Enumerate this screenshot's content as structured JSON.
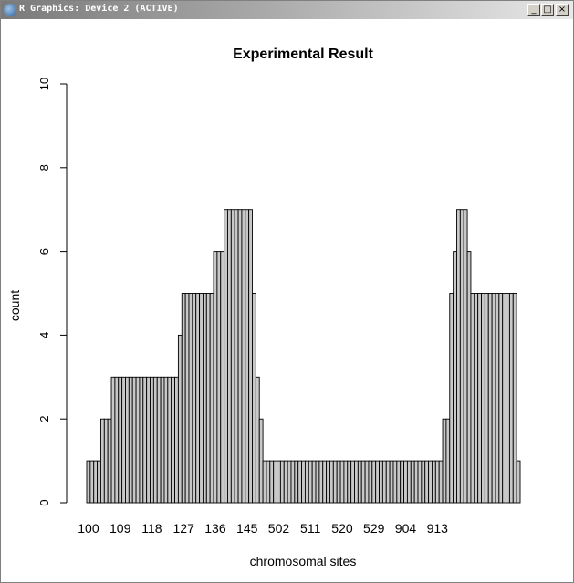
{
  "window": {
    "title": "R Graphics: Device 2 (ACTIVE)",
    "buttons": {
      "minimize": "_",
      "maximize": "□",
      "close": "×"
    }
  },
  "chart_data": {
    "type": "bar",
    "title": "Experimental Result",
    "xlabel": "chromosomal sites",
    "ylabel": "count",
    "ylim": [
      0,
      10
    ],
    "yticks": [
      0,
      2,
      4,
      6,
      8,
      10
    ],
    "xtick_labels": [
      "100",
      "109",
      "118",
      "127",
      "136",
      "145",
      "502",
      "511",
      "520",
      "529",
      "904",
      "913"
    ],
    "bar_fill": "#c8c8c8",
    "bar_stroke": "#000000",
    "values": [
      1,
      1,
      1,
      1,
      2,
      2,
      2,
      3,
      3,
      3,
      3,
      3,
      3,
      3,
      3,
      3,
      3,
      3,
      3,
      3,
      3,
      3,
      3,
      3,
      3,
      3,
      4,
      5,
      5,
      5,
      5,
      5,
      5,
      5,
      5,
      5,
      6,
      6,
      6,
      7,
      7,
      7,
      7,
      7,
      7,
      7,
      7,
      5,
      3,
      2,
      1,
      1,
      1,
      1,
      1,
      1,
      1,
      1,
      1,
      1,
      1,
      1,
      1,
      1,
      1,
      1,
      1,
      1,
      1,
      1,
      1,
      1,
      1,
      1,
      1,
      1,
      1,
      1,
      1,
      1,
      1,
      1,
      1,
      1,
      1,
      1,
      1,
      1,
      1,
      1,
      1,
      1,
      1,
      1,
      1,
      1,
      1,
      1,
      1,
      1,
      1,
      2,
      2,
      5,
      6,
      7,
      7,
      7,
      6,
      5,
      5,
      5,
      5,
      5,
      5,
      5,
      5,
      5,
      5,
      5,
      5,
      5,
      1
    ]
  }
}
